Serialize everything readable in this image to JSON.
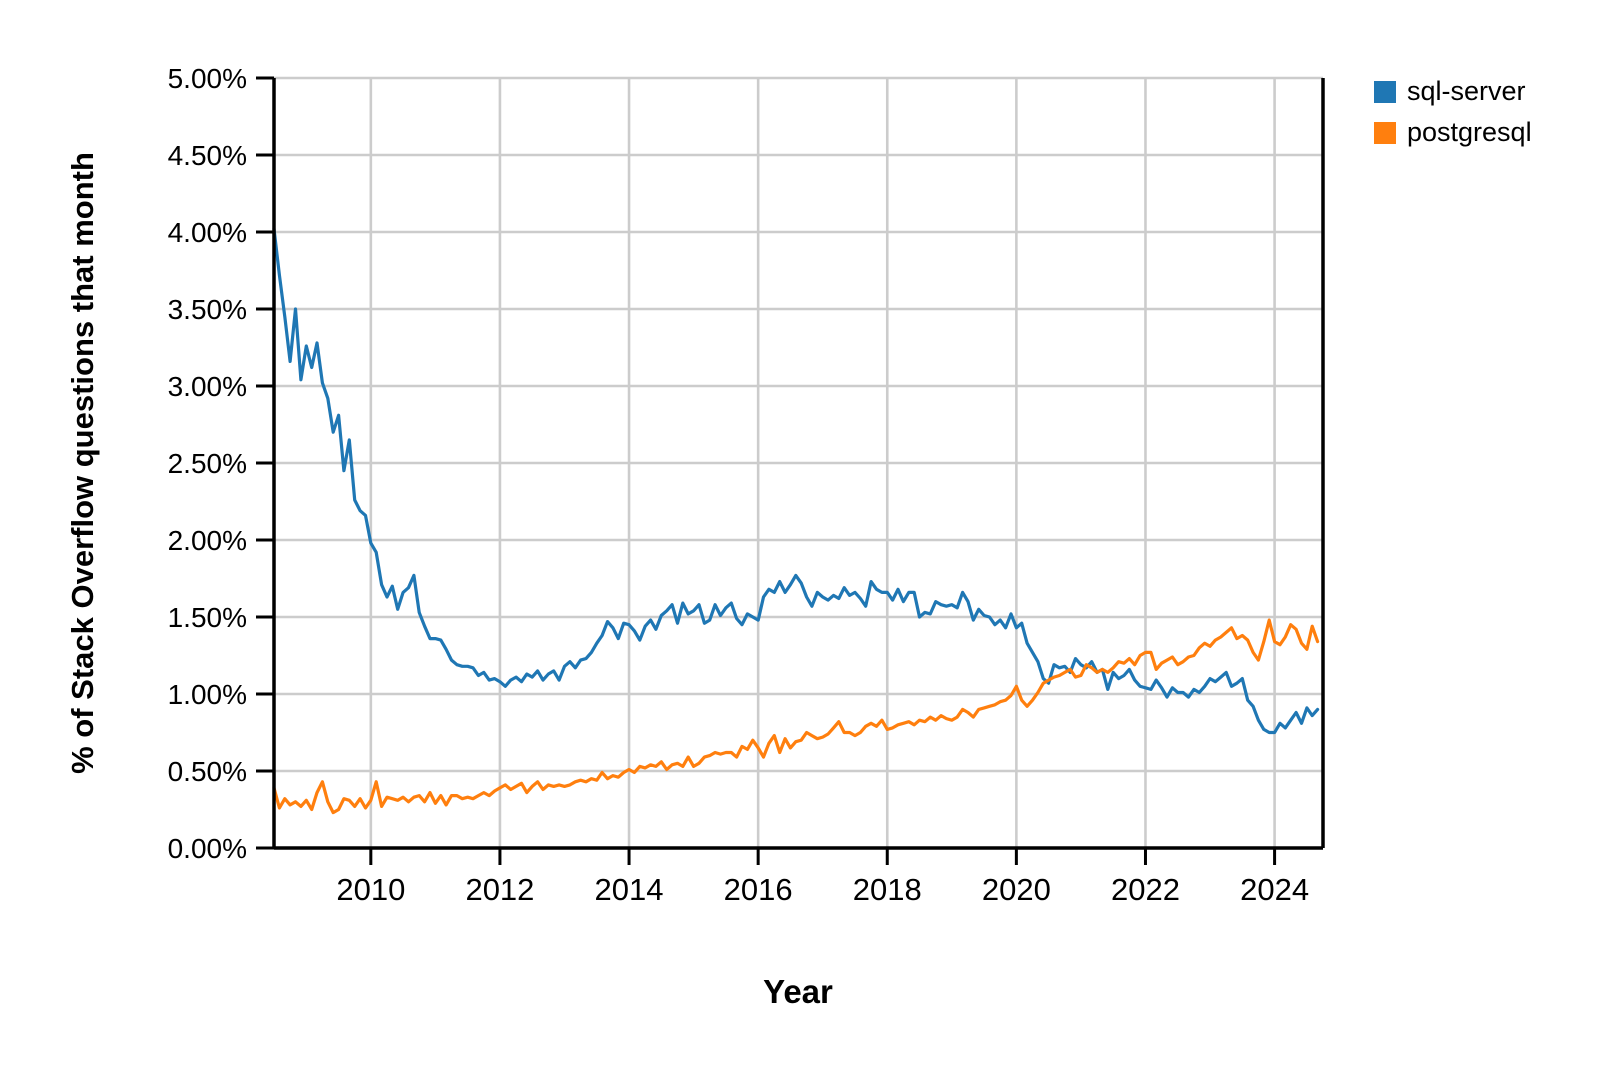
{
  "chart": {
    "background": "#ffffff",
    "grid_color": "#cccccc",
    "axis_color": "#000000",
    "text_color": "#000000"
  },
  "chart_data": {
    "type": "line",
    "title": "",
    "xlabel": "Year",
    "ylabel": "% of Stack Overflow questions that month",
    "grid": true,
    "legend_position": "top-right-outside",
    "xlim": [
      2008.5,
      2024.75
    ],
    "ylim": [
      0,
      5
    ],
    "x_ticks": [
      2010,
      2012,
      2014,
      2016,
      2018,
      2020,
      2022,
      2024
    ],
    "x_tick_labels": [
      "2010",
      "2012",
      "2014",
      "2016",
      "2018",
      "2020",
      "2022",
      "2024"
    ],
    "y_ticks": [
      0,
      0.5,
      1,
      1.5,
      2,
      2.5,
      3,
      3.5,
      4,
      4.5,
      5
    ],
    "y_tick_labels": [
      "0.00%",
      "0.50%",
      "1.00%",
      "1.50%",
      "2.00%",
      "2.50%",
      "3.00%",
      "3.50%",
      "4.00%",
      "4.50%",
      "5.00%"
    ],
    "x_start": 2008.5,
    "x_step_months": 1,
    "series": [
      {
        "name": "sql-server",
        "color": "#1f77b4",
        "values": [
          4.02,
          3.72,
          3.45,
          3.16,
          3.5,
          3.04,
          3.26,
          3.12,
          3.28,
          3.02,
          2.92,
          2.7,
          2.81,
          2.45,
          2.65,
          2.26,
          2.19,
          2.16,
          1.98,
          1.92,
          1.71,
          1.63,
          1.7,
          1.55,
          1.66,
          1.69,
          1.77,
          1.53,
          1.44,
          1.36,
          1.36,
          1.35,
          1.29,
          1.22,
          1.19,
          1.18,
          1.18,
          1.17,
          1.12,
          1.14,
          1.09,
          1.1,
          1.08,
          1.05,
          1.09,
          1.11,
          1.08,
          1.13,
          1.11,
          1.15,
          1.09,
          1.13,
          1.15,
          1.09,
          1.18,
          1.21,
          1.17,
          1.22,
          1.23,
          1.27,
          1.33,
          1.38,
          1.47,
          1.43,
          1.36,
          1.46,
          1.45,
          1.41,
          1.35,
          1.44,
          1.48,
          1.42,
          1.51,
          1.54,
          1.58,
          1.46,
          1.59,
          1.52,
          1.54,
          1.58,
          1.46,
          1.48,
          1.58,
          1.51,
          1.56,
          1.59,
          1.49,
          1.45,
          1.52,
          1.5,
          1.48,
          1.63,
          1.68,
          1.66,
          1.73,
          1.66,
          1.71,
          1.77,
          1.72,
          1.63,
          1.57,
          1.66,
          1.63,
          1.61,
          1.64,
          1.62,
          1.69,
          1.64,
          1.66,
          1.62,
          1.57,
          1.73,
          1.68,
          1.66,
          1.66,
          1.61,
          1.68,
          1.6,
          1.66,
          1.66,
          1.5,
          1.53,
          1.52,
          1.6,
          1.58,
          1.57,
          1.58,
          1.56,
          1.66,
          1.6,
          1.48,
          1.55,
          1.51,
          1.5,
          1.45,
          1.48,
          1.43,
          1.52,
          1.43,
          1.46,
          1.33,
          1.27,
          1.21,
          1.1,
          1.07,
          1.19,
          1.17,
          1.18,
          1.14,
          1.23,
          1.19,
          1.17,
          1.21,
          1.14,
          1.16,
          1.03,
          1.14,
          1.1,
          1.12,
          1.16,
          1.09,
          1.05,
          1.04,
          1.03,
          1.09,
          1.04,
          0.98,
          1.04,
          1.01,
          1.01,
          0.98,
          1.03,
          1.01,
          1.05,
          1.1,
          1.08,
          1.11,
          1.14,
          1.05,
          1.07,
          1.1,
          0.96,
          0.92,
          0.83,
          0.77,
          0.75,
          0.75,
          0.81,
          0.78,
          0.83,
          0.88,
          0.81,
          0.91,
          0.86,
          0.9
        ]
      },
      {
        "name": "postgresql",
        "color": "#ff7f0e",
        "values": [
          0.39,
          0.26,
          0.32,
          0.28,
          0.3,
          0.27,
          0.31,
          0.25,
          0.36,
          0.43,
          0.3,
          0.23,
          0.25,
          0.32,
          0.31,
          0.27,
          0.32,
          0.26,
          0.31,
          0.43,
          0.27,
          0.33,
          0.32,
          0.31,
          0.33,
          0.3,
          0.33,
          0.34,
          0.3,
          0.36,
          0.29,
          0.34,
          0.28,
          0.34,
          0.34,
          0.32,
          0.33,
          0.32,
          0.34,
          0.36,
          0.34,
          0.37,
          0.39,
          0.41,
          0.38,
          0.4,
          0.42,
          0.36,
          0.4,
          0.43,
          0.38,
          0.41,
          0.4,
          0.41,
          0.4,
          0.41,
          0.43,
          0.44,
          0.43,
          0.45,
          0.44,
          0.49,
          0.45,
          0.47,
          0.46,
          0.49,
          0.51,
          0.49,
          0.53,
          0.52,
          0.54,
          0.53,
          0.56,
          0.51,
          0.54,
          0.55,
          0.53,
          0.59,
          0.53,
          0.55,
          0.59,
          0.6,
          0.62,
          0.61,
          0.62,
          0.62,
          0.59,
          0.66,
          0.64,
          0.7,
          0.65,
          0.59,
          0.68,
          0.73,
          0.62,
          0.71,
          0.65,
          0.69,
          0.7,
          0.75,
          0.73,
          0.71,
          0.72,
          0.74,
          0.78,
          0.82,
          0.75,
          0.75,
          0.73,
          0.75,
          0.79,
          0.81,
          0.79,
          0.83,
          0.77,
          0.78,
          0.8,
          0.81,
          0.82,
          0.8,
          0.83,
          0.82,
          0.85,
          0.83,
          0.86,
          0.84,
          0.83,
          0.85,
          0.9,
          0.88,
          0.85,
          0.9,
          0.91,
          0.92,
          0.93,
          0.95,
          0.96,
          0.99,
          1.05,
          0.96,
          0.92,
          0.96,
          1.01,
          1.07,
          1.09,
          1.11,
          1.12,
          1.14,
          1.16,
          1.11,
          1.12,
          1.19,
          1.17,
          1.14,
          1.16,
          1.14,
          1.17,
          1.21,
          1.2,
          1.23,
          1.19,
          1.25,
          1.27,
          1.27,
          1.16,
          1.2,
          1.22,
          1.24,
          1.19,
          1.21,
          1.24,
          1.25,
          1.3,
          1.33,
          1.31,
          1.35,
          1.37,
          1.4,
          1.43,
          1.36,
          1.38,
          1.35,
          1.27,
          1.22,
          1.34,
          1.48,
          1.34,
          1.32,
          1.37,
          1.45,
          1.42,
          1.33,
          1.29,
          1.44,
          1.34
        ]
      }
    ]
  }
}
